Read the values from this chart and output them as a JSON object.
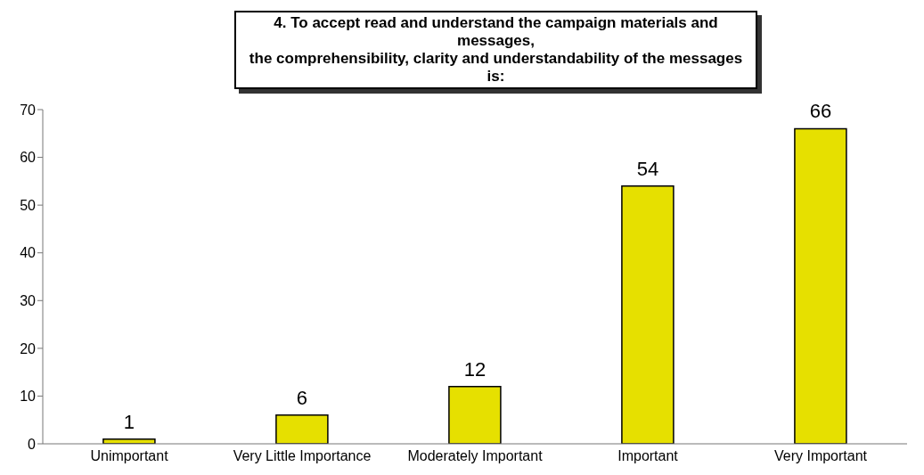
{
  "chart_data": {
    "type": "bar",
    "title": "4.  To accept read and understand the campaign materials and messages,\nthe comprehensibility, clarity and understandability of the messages is:",
    "categories": [
      "Unimportant",
      "Very Little Importance",
      "Moderately Important",
      "Important",
      "Very Important"
    ],
    "values": [
      1,
      6,
      12,
      54,
      66
    ],
    "color": "#e6e000",
    "data_labels": true,
    "ylim": [
      0,
      70
    ],
    "yticks": [
      0,
      10,
      20,
      30,
      40,
      50,
      60,
      70
    ],
    "grid": false
  }
}
